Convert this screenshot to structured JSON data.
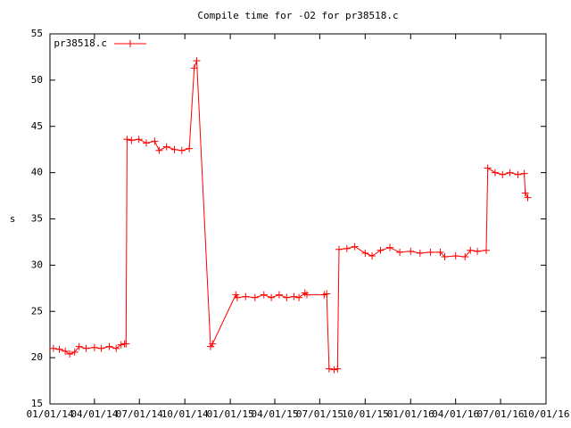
{
  "chart_data": {
    "type": "line",
    "title": "Compile time for -O2 for pr38518.c",
    "y_label": "s",
    "legend": "top-left",
    "x": [
      "01/08/14",
      "01/20/14",
      "02/01/14",
      "02/10/14",
      "02/20/14",
      "03/01/14",
      "03/15/14",
      "04/01/14",
      "04/15/14",
      "05/01/14",
      "05/15/14",
      "05/25/14",
      "06/01/14",
      "06/04/14",
      "06/06/14",
      "06/15/14",
      "06/30/14",
      "07/15/14",
      "08/01/14",
      "08/10/14",
      "08/25/14",
      "09/10/14",
      "09/25/14",
      "10/10/14",
      "10/20/14",
      "10/25/14",
      "11/22/14",
      "11/26/14",
      "01/12/15",
      "01/15/15",
      "02/01/15",
      "02/20/15",
      "03/10/15",
      "03/25/15",
      "04/10/15",
      "04/25/15",
      "05/10/15",
      "05/20/15",
      "06/01/15",
      "06/05/15",
      "07/10/15",
      "07/15/15",
      "07/20/15",
      "07/30/15",
      "08/06/15",
      "08/09/15",
      "08/25/15",
      "09/10/15",
      "10/01/15",
      "10/15/15",
      "11/01/15",
      "11/20/15",
      "12/10/15",
      "01/01/16",
      "01/20/16",
      "02/10/16",
      "03/01/16",
      "03/10/16",
      "04/01/16",
      "04/20/16",
      "05/01/16",
      "05/15/16",
      "06/02/16",
      "06/05/16",
      "06/20/16",
      "07/05/16",
      "07/20/16",
      "08/05/16",
      "08/18/16",
      "08/20/16",
      "08/25/16"
    ],
    "series": [
      {
        "name": "pr38518.c",
        "color": "#ff0000",
        "values": [
          21.0,
          20.9,
          20.7,
          20.4,
          20.6,
          21.2,
          21.0,
          21.1,
          21.0,
          21.2,
          21.0,
          21.4,
          21.5,
          21.5,
          43.6,
          43.5,
          43.6,
          43.2,
          43.4,
          42.4,
          42.8,
          42.5,
          42.4,
          42.6,
          51.3,
          52.1,
          21.2,
          21.5,
          26.8,
          26.5,
          26.6,
          26.5,
          26.8,
          26.5,
          26.8,
          26.5,
          26.6,
          26.5,
          27.0,
          26.8,
          26.8,
          26.9,
          18.8,
          18.7,
          18.8,
          31.7,
          31.8,
          32.0,
          31.3,
          31.0,
          31.6,
          31.9,
          31.4,
          31.5,
          31.3,
          31.4,
          31.4,
          30.9,
          31.0,
          30.9,
          31.6,
          31.5,
          31.6,
          40.5,
          40.0,
          39.8,
          40.0,
          39.8,
          39.9,
          37.8,
          37.3
        ]
      }
    ],
    "xlim": [
      "01/01/14",
      "10/01/16"
    ],
    "xticks": [
      "01/01/14",
      "04/01/14",
      "07/01/14",
      "10/01/14",
      "01/01/15",
      "04/01/15",
      "07/01/15",
      "10/01/15",
      "01/01/16",
      "04/01/16",
      "07/01/16",
      "10/01/16"
    ],
    "ylim": [
      15,
      55
    ],
    "yticks": [
      15,
      20,
      25,
      30,
      35,
      40,
      45,
      50,
      55
    ]
  }
}
